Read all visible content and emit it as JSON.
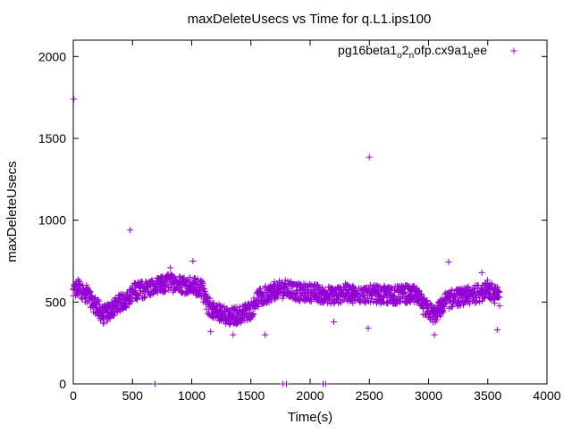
{
  "chart_data": {
    "type": "scatter",
    "title": "maxDeleteUsecs vs Time for q.L1.ips100",
    "xlabel": "Time(s)",
    "ylabel": "maxDeleteUsecs",
    "xlim": [
      0,
      4000
    ],
    "ylim": [
      0,
      2100
    ],
    "xticks": [
      "0",
      "500",
      "1000",
      "1500",
      "2000",
      "2500",
      "3000",
      "3500",
      "4000"
    ],
    "yticks": [
      "0",
      "500",
      "1000",
      "1500",
      "2000"
    ],
    "grid": false,
    "legend_position": "top-right",
    "series": [
      {
        "name_parts": [
          "pg16beta1",
          "o",
          "2",
          "n",
          "ofp.cx9a1",
          "b",
          "ee"
        ],
        "marker": "+",
        "color": "#9400d3",
        "profile": [
          [
            0,
            560
          ],
          [
            50,
            590
          ],
          [
            100,
            555
          ],
          [
            150,
            520
          ],
          [
            200,
            470
          ],
          [
            250,
            420
          ],
          [
            300,
            440
          ],
          [
            350,
            470
          ],
          [
            400,
            500
          ],
          [
            450,
            520
          ],
          [
            500,
            560
          ],
          [
            600,
            580
          ],
          [
            700,
            590
          ],
          [
            800,
            620
          ],
          [
            900,
            610
          ],
          [
            1000,
            600
          ],
          [
            1080,
            590
          ],
          [
            1130,
            480
          ],
          [
            1200,
            450
          ],
          [
            1300,
            410
          ],
          [
            1400,
            420
          ],
          [
            1500,
            450
          ],
          [
            1550,
            520
          ],
          [
            1620,
            540
          ],
          [
            1700,
            570
          ],
          [
            1800,
            580
          ],
          [
            1900,
            560
          ],
          [
            2000,
            560
          ],
          [
            2100,
            550
          ],
          [
            2200,
            540
          ],
          [
            2300,
            560
          ],
          [
            2400,
            540
          ],
          [
            2500,
            550
          ],
          [
            2600,
            545
          ],
          [
            2700,
            540
          ],
          [
            2800,
            550
          ],
          [
            2900,
            540
          ],
          [
            2950,
            480
          ],
          [
            3000,
            450
          ],
          [
            3050,
            420
          ],
          [
            3100,
            460
          ],
          [
            3150,
            510
          ],
          [
            3250,
            530
          ],
          [
            3350,
            540
          ],
          [
            3450,
            560
          ],
          [
            3500,
            580
          ],
          [
            3550,
            550
          ],
          [
            3600,
            530
          ]
        ],
        "outliers": [
          [
            5,
            1740
          ],
          [
            480,
            940
          ],
          [
            1010,
            750
          ],
          [
            2500,
            1385
          ],
          [
            3170,
            745
          ],
          [
            690,
            0
          ],
          [
            1770,
            0
          ],
          [
            1800,
            0
          ],
          [
            2110,
            0
          ],
          [
            2130,
            0
          ],
          [
            820,
            710
          ],
          [
            3450,
            680
          ],
          [
            1160,
            320
          ],
          [
            1350,
            300
          ],
          [
            3050,
            300
          ],
          [
            2490,
            340
          ],
          [
            3580,
            330
          ],
          [
            170,
            440
          ],
          [
            1620,
            300
          ],
          [
            2200,
            380
          ]
        ]
      }
    ]
  }
}
